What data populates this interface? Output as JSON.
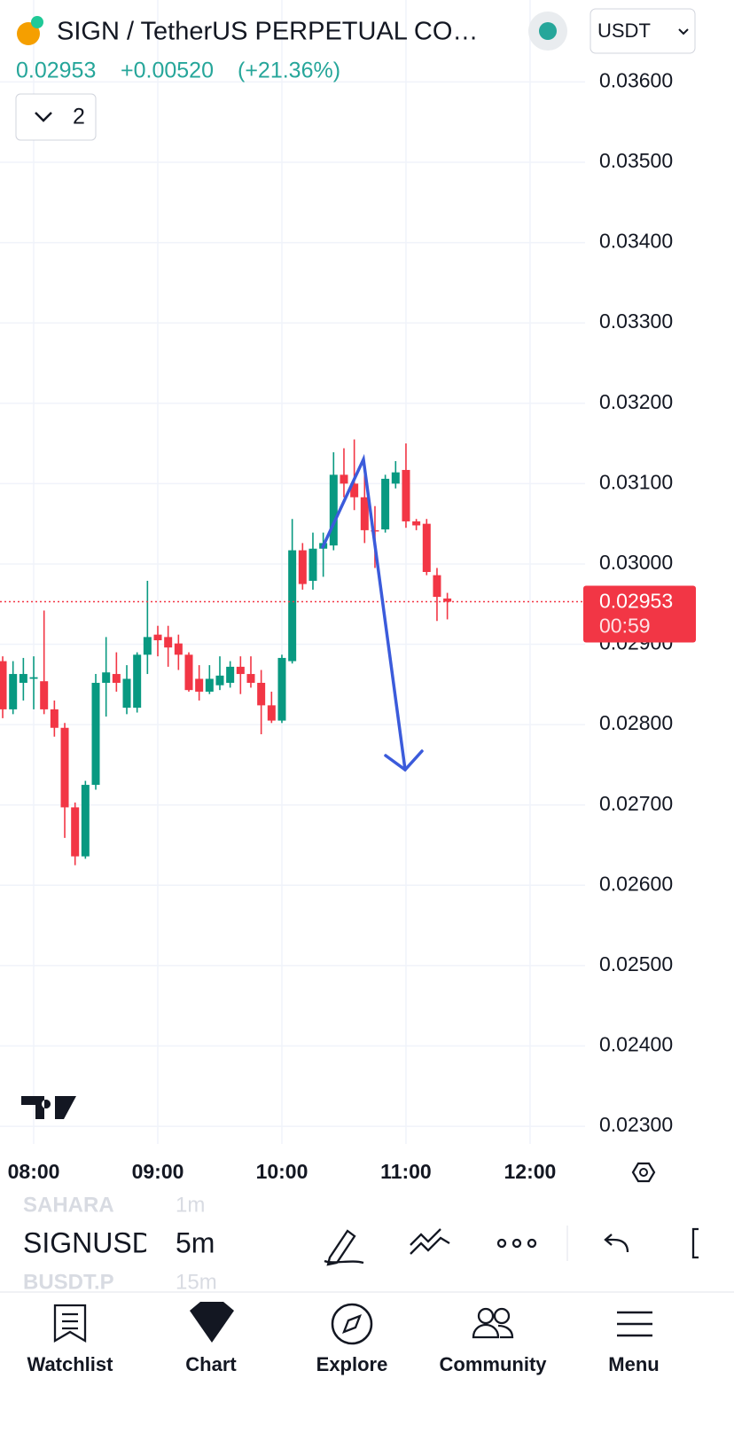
{
  "header": {
    "symbol_title": "SIGN / TetherUS PERPETUAL CO…",
    "change": "+0.00520",
    "change_pct": "(+21.36%)",
    "currency": "USDT",
    "indicators_count": "2"
  },
  "chart_data": {
    "type": "candlestick",
    "up_color": "#089981",
    "down_color": "#f23645",
    "grid": true,
    "last_price": 0.02953,
    "countdown": "00:59",
    "xlim": [
      463.7,
      746.6
    ],
    "ylim": [
      0.02278,
      0.03702
    ],
    "xticks": [
      {
        "value": 480,
        "label": "08:00"
      },
      {
        "value": 540,
        "label": "09:00"
      },
      {
        "value": 600,
        "label": "10:00"
      },
      {
        "value": 660,
        "label": "11:00"
      },
      {
        "value": 720,
        "label": "12:00"
      }
    ],
    "yticks": [
      {
        "value": 0.036,
        "label": "0.03600"
      },
      {
        "value": 0.035,
        "label": "0.03500"
      },
      {
        "value": 0.034,
        "label": "0.03400"
      },
      {
        "value": 0.033,
        "label": "0.03300"
      },
      {
        "value": 0.032,
        "label": "0.03200"
      },
      {
        "value": 0.031,
        "label": "0.03100"
      },
      {
        "value": 0.03,
        "label": "0.03000"
      },
      {
        "value": 0.029,
        "label": "0.02900"
      },
      {
        "value": 0.028,
        "label": "0.02800"
      },
      {
        "value": 0.027,
        "label": "0.02700"
      },
      {
        "value": 0.026,
        "label": "0.02600"
      },
      {
        "value": 0.025,
        "label": "0.02500"
      },
      {
        "value": 0.024,
        "label": "0.02400"
      },
      {
        "value": 0.023,
        "label": "0.02300"
      }
    ],
    "x": [
      465,
      470,
      475,
      480,
      485,
      490,
      495,
      500,
      505,
      510,
      515,
      520,
      525,
      530,
      535,
      540,
      545,
      550,
      555,
      560,
      565,
      570,
      575,
      580,
      585,
      590,
      595,
      600,
      605,
      610,
      615,
      620,
      625,
      630,
      635,
      640,
      645,
      650,
      655,
      660,
      665,
      670,
      675,
      680
    ],
    "open": [
      0.02879,
      0.02819,
      0.02852,
      0.02857,
      0.02854,
      0.02819,
      0.02796,
      0.02697,
      0.02636,
      0.02725,
      0.02852,
      0.02863,
      0.02821,
      0.02821,
      0.02887,
      0.02912,
      0.02909,
      0.02901,
      0.02887,
      0.02857,
      0.02841,
      0.02849,
      0.02852,
      0.02872,
      0.02863,
      0.02852,
      0.02824,
      0.02805,
      0.02879,
      0.03017,
      0.02979,
      0.03019,
      0.03023,
      0.03111,
      0.031,
      0.03083,
      0.03042,
      0.03043,
      0.031,
      0.03117,
      0.03053,
      0.0305,
      0.02986,
      0.02957
    ],
    "high": [
      0.02885,
      0.02879,
      0.02883,
      0.02885,
      0.02942,
      0.0283,
      0.02802,
      0.02703,
      0.0273,
      0.02863,
      0.02909,
      0.0289,
      0.02874,
      0.0289,
      0.02979,
      0.02923,
      0.02923,
      0.02912,
      0.0289,
      0.02874,
      0.02874,
      0.02885,
      0.02879,
      0.02885,
      0.02885,
      0.02868,
      0.02841,
      0.02887,
      0.03056,
      0.03026,
      0.03039,
      0.03039,
      0.03139,
      0.03144,
      0.03155,
      0.03117,
      0.03072,
      0.03111,
      0.03128,
      0.0315,
      0.03056,
      0.03056,
      0.02995,
      0.02964
    ],
    "low": [
      0.02808,
      0.02813,
      0.0283,
      0.02819,
      0.02813,
      0.02785,
      0.02659,
      0.02625,
      0.02633,
      0.02719,
      0.0281,
      0.02841,
      0.02813,
      0.02815,
      0.02863,
      0.02885,
      0.02872,
      0.02868,
      0.02841,
      0.0283,
      0.02838,
      0.02843,
      0.02846,
      0.02838,
      0.02846,
      0.02788,
      0.02802,
      0.02802,
      0.02876,
      0.02968,
      0.02968,
      0.02984,
      0.03017,
      0.03083,
      0.03067,
      0.03026,
      0.02995,
      0.03039,
      0.03094,
      0.03045,
      0.03042,
      0.02986,
      0.02929,
      0.02931
    ],
    "close": [
      0.02819,
      0.02863,
      0.02863,
      0.02859,
      0.02819,
      0.02796,
      0.02697,
      0.02636,
      0.02725,
      0.02852,
      0.02865,
      0.02852,
      0.02857,
      0.02887,
      0.02909,
      0.02905,
      0.02896,
      0.02887,
      0.02843,
      0.02841,
      0.02857,
      0.02861,
      0.02872,
      0.02863,
      0.02852,
      0.02824,
      0.02805,
      0.02883,
      0.03017,
      0.02975,
      0.03019,
      0.03026,
      0.03111,
      0.031,
      0.03083,
      0.03042,
      0.03041,
      0.03106,
      0.03114,
      0.03053,
      0.03048,
      0.0299,
      0.02959,
      0.02953
    ]
  },
  "toolbar": {
    "prev_symbol": "SAHARA",
    "prev_interval": "1m",
    "symbol": "SIGNUSD",
    "interval": "5m",
    "next_symbol": "BUSDT.P",
    "next_interval": "15m"
  },
  "nav": [
    "Watchlist",
    "Chart",
    "Explore",
    "Community",
    "Menu"
  ]
}
